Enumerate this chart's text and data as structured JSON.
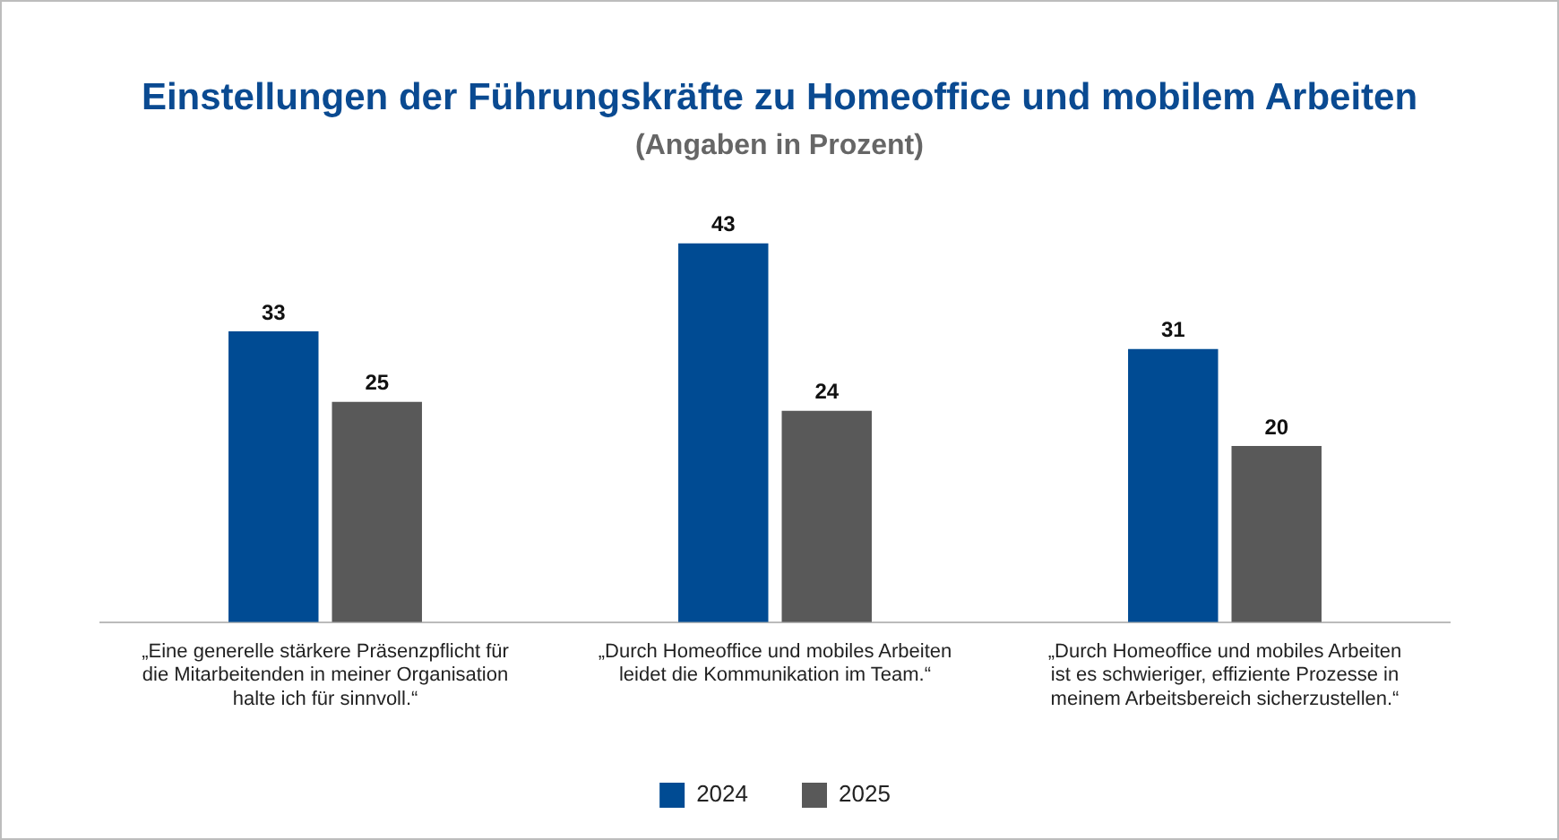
{
  "chart_data": {
    "type": "bar",
    "title": "Einstellungen der Führungskräfte zu Homeoffice und mobilem Arbeiten",
    "subtitle": "(Angaben in Prozent)",
    "categories": [
      "„Eine generelle stärkere Präsenzpflicht für die Mitarbeitenden in meiner Organisation halte ich für sinnvoll.“",
      "„Durch Homeoffice und mobiles Arbeiten leidet die Kommunikation im Team.“",
      "„Durch Homeoffice und mobiles Arbeiten ist es schwieriger, effiziente Prozesse in meinem Arbeitsbereich sicherzustellen.“"
    ],
    "series": [
      {
        "name": "2024",
        "color": "#004b93",
        "values": [
          33,
          43,
          31
        ]
      },
      {
        "name": "2025",
        "color": "#595959",
        "values": [
          25,
          24,
          20
        ]
      }
    ],
    "data_labels": true,
    "grid": false,
    "legend": "bottom"
  }
}
